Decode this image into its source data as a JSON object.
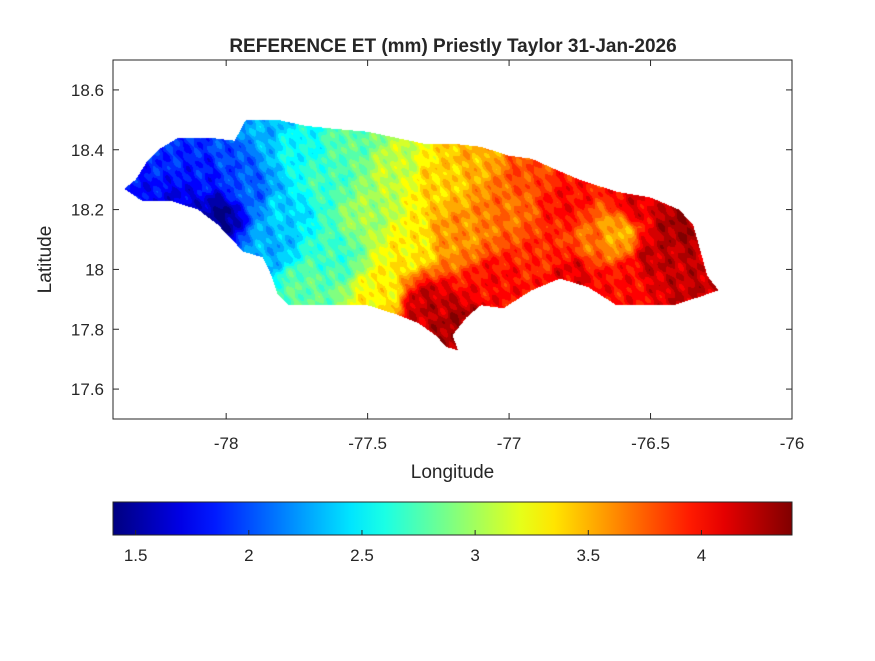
{
  "chart_data": {
    "type": "heatmap",
    "title": "REFERENCE ET (mm) Priestly Taylor 31-Jan-2026",
    "xlabel": "Longitude",
    "ylabel": "Latitude",
    "xlim": [
      -78.4,
      -76
    ],
    "ylim": [
      17.5,
      18.7
    ],
    "xticks": [
      -78,
      -77.5,
      -77,
      -76.5,
      -76
    ],
    "xtick_labels": [
      "-78",
      "-77.5",
      "-77",
      "-76.5",
      "-76"
    ],
    "yticks": [
      17.6,
      17.8,
      18,
      18.2,
      18.4,
      18.6
    ],
    "ytick_labels": [
      "17.6",
      "17.8",
      "18",
      "18.2",
      "18.4",
      "18.6"
    ],
    "colorbar": {
      "orientation": "horizontal",
      "placement": "bottom",
      "colormap": "jet",
      "clim": [
        1.4,
        4.4
      ],
      "ticks": [
        1.5,
        2,
        2.5,
        3,
        3.5,
        4
      ],
      "tick_labels": [
        "1.5",
        "2",
        "2.5",
        "3",
        "3.5",
        "4"
      ]
    },
    "grid": false,
    "region_outline": [
      [
        -78.36,
        18.27
      ],
      [
        -78.32,
        18.3
      ],
      [
        -78.28,
        18.36
      ],
      [
        -78.24,
        18.4
      ],
      [
        -78.17,
        18.44
      ],
      [
        -78.06,
        18.44
      ],
      [
        -77.97,
        18.43
      ],
      [
        -77.93,
        18.5
      ],
      [
        -77.82,
        18.5
      ],
      [
        -77.72,
        18.48
      ],
      [
        -77.62,
        18.47
      ],
      [
        -77.5,
        18.46
      ],
      [
        -77.4,
        18.44
      ],
      [
        -77.3,
        18.42
      ],
      [
        -77.2,
        18.42
      ],
      [
        -77.1,
        18.41
      ],
      [
        -77.0,
        18.38
      ],
      [
        -76.92,
        18.37
      ],
      [
        -76.85,
        18.34
      ],
      [
        -76.75,
        18.3
      ],
      [
        -76.62,
        18.26
      ],
      [
        -76.5,
        18.24
      ],
      [
        -76.4,
        18.2
      ],
      [
        -76.35,
        18.15
      ],
      [
        -76.32,
        18.05
      ],
      [
        -76.3,
        17.98
      ],
      [
        -76.26,
        17.93
      ],
      [
        -76.32,
        17.91
      ],
      [
        -76.42,
        17.88
      ],
      [
        -76.52,
        17.88
      ],
      [
        -76.62,
        17.88
      ],
      [
        -76.72,
        17.94
      ],
      [
        -76.82,
        17.97
      ],
      [
        -76.92,
        17.93
      ],
      [
        -77.02,
        17.87
      ],
      [
        -77.1,
        17.88
      ],
      [
        -77.15,
        17.84
      ],
      [
        -77.2,
        17.78
      ],
      [
        -77.18,
        17.73
      ],
      [
        -77.22,
        17.74
      ],
      [
        -77.26,
        17.78
      ],
      [
        -77.32,
        17.82
      ],
      [
        -77.4,
        17.85
      ],
      [
        -77.5,
        17.88
      ],
      [
        -77.6,
        17.88
      ],
      [
        -77.7,
        17.88
      ],
      [
        -77.78,
        17.88
      ],
      [
        -77.82,
        17.92
      ],
      [
        -77.84,
        17.98
      ],
      [
        -77.87,
        18.04
      ],
      [
        -77.94,
        18.06
      ],
      [
        -77.98,
        18.1
      ],
      [
        -78.03,
        18.15
      ],
      [
        -78.1,
        18.2
      ],
      [
        -78.2,
        18.23
      ],
      [
        -78.3,
        18.23
      ],
      [
        -78.36,
        18.27
      ]
    ],
    "field_control_points": {
      "columns": [
        "longitude",
        "latitude",
        "et_mm"
      ],
      "rows": [
        [
          -78.32,
          18.27,
          1.8
        ],
        [
          -78.22,
          18.38,
          1.9
        ],
        [
          -78.15,
          18.22,
          1.7
        ],
        [
          -78.02,
          18.18,
          1.45
        ],
        [
          -78.08,
          18.32,
          1.85
        ],
        [
          -77.98,
          18.38,
          2.0
        ],
        [
          -77.92,
          18.26,
          2.05
        ],
        [
          -77.88,
          18.46,
          2.3
        ],
        [
          -77.85,
          18.08,
          2.3
        ],
        [
          -77.8,
          18.2,
          2.4
        ],
        [
          -77.75,
          18.4,
          2.55
        ],
        [
          -77.72,
          17.94,
          2.8
        ],
        [
          -77.66,
          18.3,
          2.7
        ],
        [
          -77.62,
          18.05,
          2.7
        ],
        [
          -77.55,
          18.42,
          2.8
        ],
        [
          -77.5,
          18.18,
          3.0
        ],
        [
          -77.45,
          17.92,
          3.3
        ],
        [
          -77.4,
          18.35,
          3.1
        ],
        [
          -77.36,
          18.08,
          3.3
        ],
        [
          -77.3,
          17.88,
          4.2
        ],
        [
          -77.25,
          18.3,
          3.4
        ],
        [
          -77.18,
          17.8,
          4.3
        ],
        [
          -77.18,
          18.12,
          3.6
        ],
        [
          -77.1,
          18.38,
          3.5
        ],
        [
          -77.05,
          17.95,
          4.0
        ],
        [
          -77.0,
          18.2,
          3.7
        ],
        [
          -76.95,
          18.32,
          3.8
        ],
        [
          -76.88,
          18.05,
          3.9
        ],
        [
          -76.8,
          18.22,
          4.0
        ],
        [
          -76.78,
          17.98,
          4.1
        ],
        [
          -76.7,
          18.1,
          3.7
        ],
        [
          -76.62,
          18.12,
          3.5
        ],
        [
          -76.6,
          17.95,
          4.0
        ],
        [
          -76.55,
          18.22,
          4.1
        ],
        [
          -76.48,
          18.05,
          4.2
        ],
        [
          -76.4,
          18.15,
          4.3
        ],
        [
          -76.35,
          17.98,
          4.2
        ]
      ]
    }
  }
}
